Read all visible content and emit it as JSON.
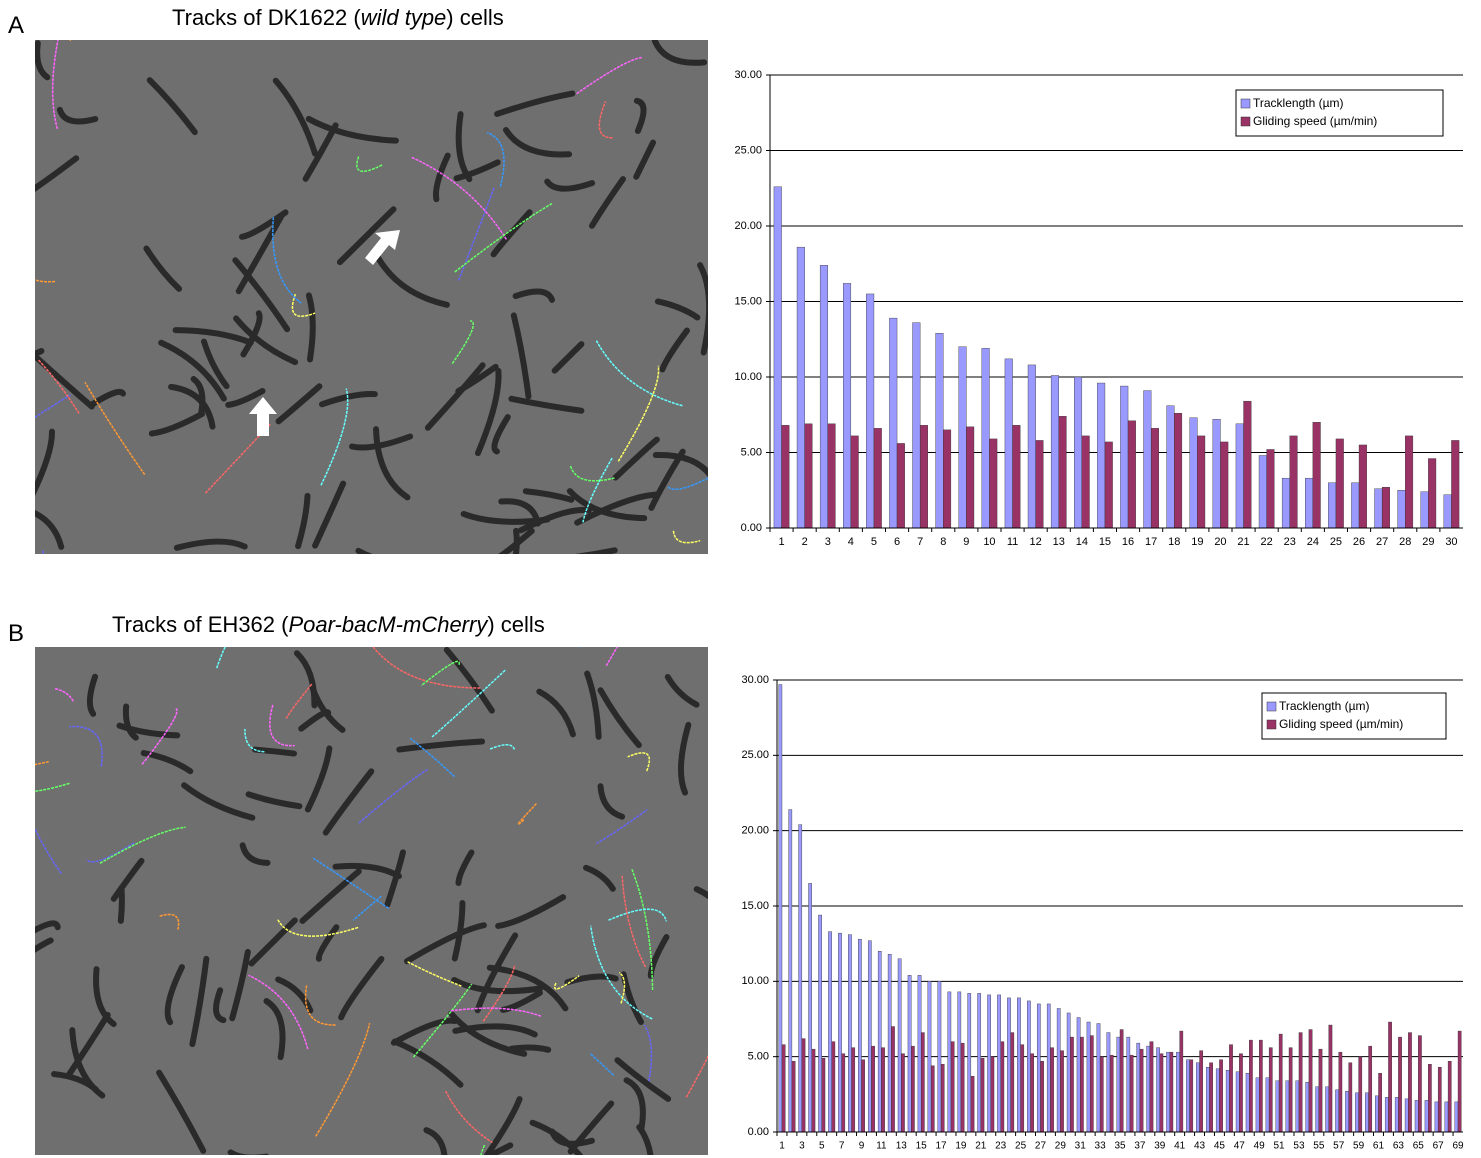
{
  "panels": [
    {
      "letter": "A",
      "title_parts": [
        "Tracks of DK1622 (",
        "wild type",
        ") cells"
      ]
    },
    {
      "letter": "B",
      "title_parts": [
        "Tracks of EH362 (",
        "Poar-bacM-mCherry",
        ") cells"
      ]
    }
  ],
  "chart_data": [
    {
      "type": "bar",
      "categories": [
        "1",
        "2",
        "3",
        "4",
        "5",
        "6",
        "7",
        "8",
        "9",
        "10",
        "11",
        "12",
        "13",
        "14",
        "15",
        "16",
        "17",
        "18",
        "19",
        "20",
        "21",
        "22",
        "23",
        "24",
        "25",
        "26",
        "27",
        "28",
        "29",
        "30"
      ],
      "series": [
        {
          "name": "Tracklength (µm)",
          "color": "#9999ff",
          "values": [
            22.6,
            18.6,
            17.4,
            16.2,
            15.5,
            13.9,
            13.6,
            12.9,
            12.0,
            11.9,
            11.2,
            10.8,
            10.1,
            10.0,
            9.6,
            9.4,
            9.1,
            8.1,
            7.3,
            7.2,
            6.9,
            4.8,
            3.3,
            3.3,
            3.0,
            3.0,
            2.6,
            2.5,
            2.4,
            2.2
          ]
        },
        {
          "name": "Gliding speed (µm/min)",
          "color": "#993366",
          "values": [
            6.8,
            6.9,
            6.9,
            6.1,
            6.6,
            5.6,
            6.8,
            6.5,
            6.7,
            5.9,
            6.8,
            5.8,
            7.4,
            6.1,
            5.7,
            7.1,
            6.6,
            7.6,
            6.1,
            5.7,
            8.4,
            5.2,
            6.1,
            7.0,
            5.9,
            5.5,
            2.7,
            6.1,
            4.6,
            5.8
          ]
        }
      ],
      "ylim": [
        0,
        30
      ],
      "yticks": [
        {
          "value": 0,
          "label": "0.00"
        },
        {
          "value": 5,
          "label": "5.00"
        },
        {
          "value": 10,
          "label": "10.00"
        },
        {
          "value": 15,
          "label": "15.00"
        },
        {
          "value": 20,
          "label": "20.00"
        },
        {
          "value": 25,
          "label": "25.00"
        },
        {
          "value": 30,
          "label": "30.00"
        }
      ],
      "grid": true,
      "legend": "top-right"
    },
    {
      "type": "bar",
      "categories": [
        "1",
        null,
        "3",
        null,
        "5",
        null,
        "7",
        null,
        "9",
        null,
        "11",
        null,
        "13",
        null,
        "15",
        null,
        "17",
        null,
        "19",
        null,
        "21",
        null,
        "23",
        null,
        "25",
        null,
        "27",
        null,
        "29",
        null,
        "31",
        null,
        "33",
        null,
        "35",
        null,
        "37",
        null,
        "39",
        null,
        "41",
        null,
        "43",
        null,
        "45",
        null,
        "47",
        null,
        "49",
        null,
        "51",
        null,
        "53",
        null,
        "55",
        null,
        "57",
        null,
        "59",
        null,
        "61",
        null,
        "63",
        null,
        "65",
        null,
        "67",
        null,
        "69"
      ],
      "series": [
        {
          "name": "Tracklength (µm)",
          "color": "#9999ff",
          "values": [
            29.7,
            21.4,
            20.4,
            16.5,
            14.4,
            13.3,
            13.2,
            13.1,
            12.8,
            12.7,
            12.0,
            11.8,
            11.5,
            10.4,
            10.4,
            10.0,
            10.0,
            9.3,
            9.3,
            9.2,
            9.2,
            9.1,
            9.1,
            8.9,
            8.9,
            8.7,
            8.5,
            8.5,
            8.2,
            7.9,
            7.6,
            7.3,
            7.2,
            6.6,
            6.3,
            6.3,
            5.9,
            5.7,
            5.6,
            5.3,
            5.3,
            4.8,
            4.6,
            4.3,
            4.2,
            4.1,
            4.0,
            3.9,
            3.6,
            3.6,
            3.4,
            3.4,
            3.4,
            3.3,
            3.0,
            3.0,
            2.8,
            2.7,
            2.6,
            2.6,
            2.4,
            2.3,
            2.3,
            2.2,
            2.1,
            2.1,
            2.0,
            2.0,
            2.0
          ]
        },
        {
          "name": "Gliding speed (µm/min)",
          "color": "#993366",
          "values": [
            5.8,
            4.7,
            6.2,
            5.5,
            4.9,
            6.0,
            5.2,
            5.6,
            4.8,
            5.7,
            5.6,
            7.0,
            5.2,
            5.7,
            6.6,
            4.4,
            4.5,
            6.0,
            5.9,
            3.7,
            4.9,
            5.0,
            6.0,
            6.6,
            5.8,
            5.2,
            4.7,
            5.6,
            5.4,
            6.3,
            6.3,
            6.4,
            5.0,
            5.1,
            6.8,
            5.1,
            5.5,
            6.0,
            5.2,
            5.3,
            6.7,
            4.8,
            5.4,
            4.6,
            4.8,
            5.8,
            5.2,
            6.1,
            6.1,
            5.6,
            6.5,
            5.6,
            6.6,
            6.8,
            5.5,
            7.1,
            5.3,
            4.6,
            5.0,
            5.7,
            3.9,
            7.3,
            6.3,
            6.6,
            6.4,
            4.5,
            4.3,
            4.7,
            6.7
          ]
        }
      ],
      "ylim": [
        0,
        30
      ],
      "yticks": [
        {
          "value": 0,
          "label": "0.00"
        },
        {
          "value": 5,
          "label": "5.00"
        },
        {
          "value": 10,
          "label": "10.00"
        },
        {
          "value": 15,
          "label": "15.00"
        },
        {
          "value": 20,
          "label": "20.00"
        },
        {
          "value": 25,
          "label": "25.00"
        },
        {
          "value": 30,
          "label": "30.00"
        }
      ],
      "grid": true,
      "legend": "top-right"
    }
  ]
}
